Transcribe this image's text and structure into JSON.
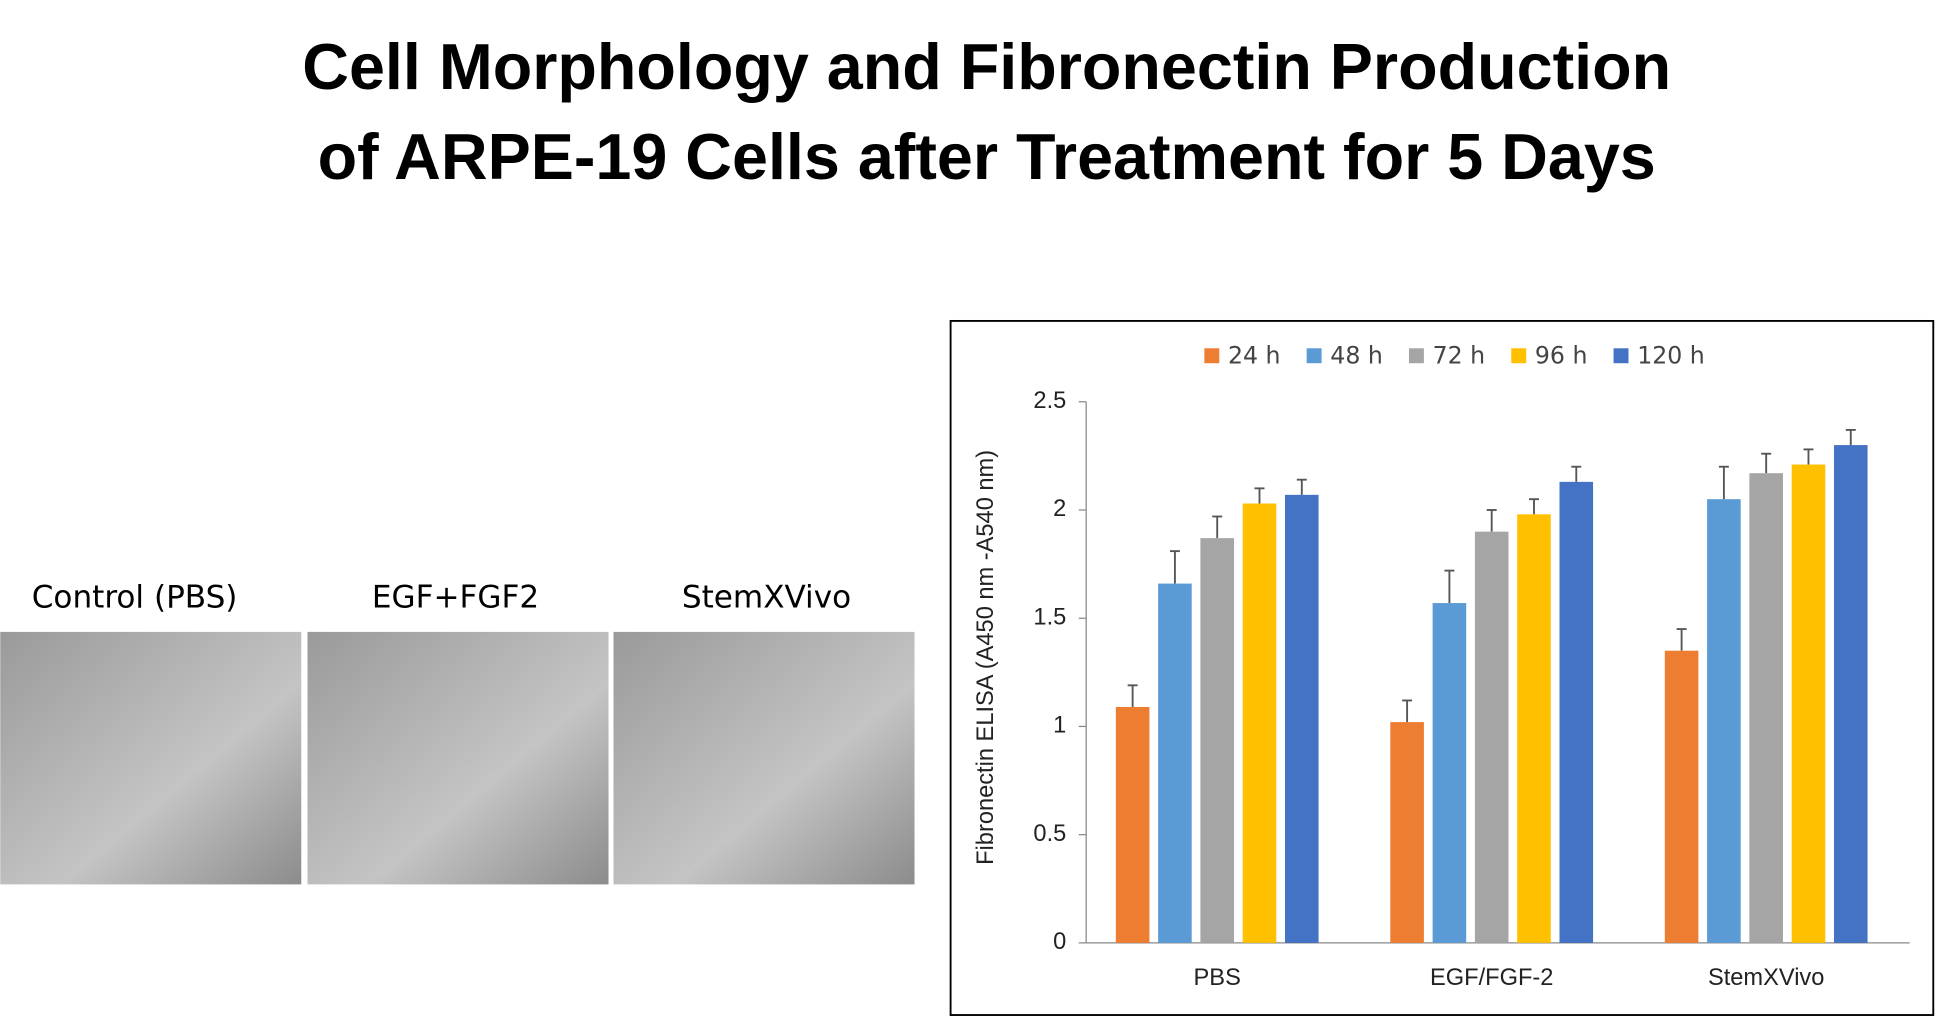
{
  "title_lines": [
    "Cell Morphology and Fibronectin Production",
    "of ARPE-19 Cells after Treatment for 5 Days"
  ],
  "panels": [
    "Control (PBS)",
    "EGF+FGF2",
    "StemXVivo"
  ],
  "chart_data": {
    "type": "bar",
    "ylabel": "Fibronectin ELISA (A450 nm -A540 nm)",
    "categories": [
      "PBS",
      "EGF/FGF-2",
      "StemXVivo"
    ],
    "series": [
      {
        "name": "24 h",
        "color": "#ED7D31",
        "values": [
          1.09,
          1.02,
          1.35
        ],
        "errors": [
          0.1,
          0.1,
          0.1
        ]
      },
      {
        "name": "48 h",
        "color": "#5B9BD5",
        "values": [
          1.66,
          1.57,
          2.05
        ],
        "errors": [
          0.15,
          0.15,
          0.15
        ]
      },
      {
        "name": "72 h",
        "color": "#A5A5A5",
        "values": [
          1.87,
          1.9,
          2.17
        ],
        "errors": [
          0.1,
          0.1,
          0.09
        ]
      },
      {
        "name": "96 h",
        "color": "#FFC000",
        "values": [
          2.03,
          1.98,
          2.21
        ],
        "errors": [
          0.07,
          0.07,
          0.07
        ]
      },
      {
        "name": "120 h",
        "color": "#4472C4",
        "values": [
          2.07,
          2.13,
          2.3
        ],
        "errors": [
          0.07,
          0.07,
          0.07
        ]
      }
    ],
    "ylim": [
      0,
      2.5
    ],
    "yticks": [
      0,
      0.5,
      1,
      1.5,
      2,
      2.5
    ],
    "grid": false,
    "legend": "top"
  }
}
